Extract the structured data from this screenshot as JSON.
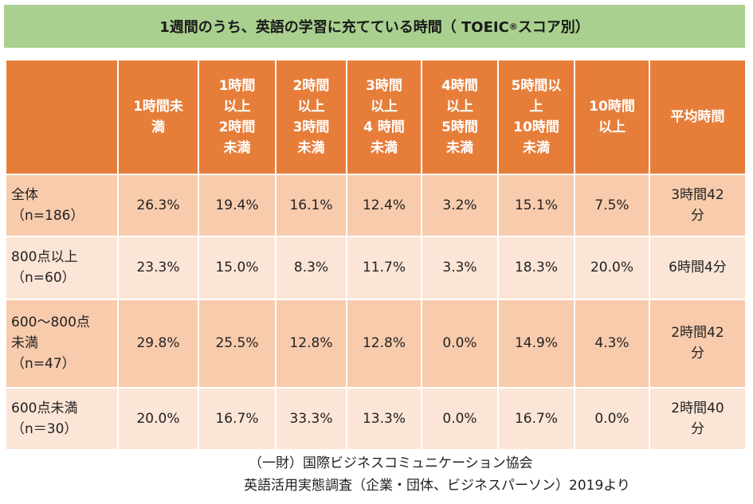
{
  "title": {
    "main": "1週間のうち、英語の学習に充てている時間（ TOEIC",
    "reg": "®",
    "end": "スコア別）"
  },
  "chart_data": {
    "type": "table",
    "columns": [
      "",
      "1時間未\n満",
      "1時間\n以上\n2時間\n未満",
      "2時間\n以上\n3時間\n未満",
      "3時間\n以上\n4 時間\n未満",
      "4時間\n以上\n5時間\n未満",
      "5時間以\n上\n10時間\n未満",
      "10時間\n以上",
      "平均時間"
    ],
    "rows": [
      {
        "label": "全体\n（n=186）",
        "values": [
          "26.3%",
          "19.4%",
          "16.1%",
          "12.4%",
          "3.2%",
          "15.1%",
          "7.5%",
          "3時間42\n分"
        ]
      },
      {
        "label": "800点以上\n（n=60）",
        "values": [
          "23.3%",
          "15.0%",
          "8.3%",
          "11.7%",
          "3.3%",
          "18.3%",
          "20.0%",
          "6時間4分"
        ]
      },
      {
        "label": "600〜800点\n未満\n（n=47）",
        "values": [
          "29.8%",
          "25.5%",
          "12.8%",
          "12.8%",
          "0.0%",
          "14.9%",
          "4.3%",
          "2時間42\n分"
        ]
      },
      {
        "label": "600点未満\n（n＝30）",
        "values": [
          "20.0%",
          "16.7%",
          "33.3%",
          "13.3%",
          "0.0%",
          "16.7%",
          "0.0%",
          "2時間40\n分"
        ]
      }
    ]
  },
  "source": {
    "line1": "（一財）国際ビジネスコミュニケーション協会",
    "line2": "英語活用実態調査（企業・団体、ビジネスパーソン）2019より"
  },
  "colors": {
    "title_bg": "#a9d08e",
    "header_bg": "#e67e3a",
    "row_dark": "#f8cbad",
    "row_light": "#fbe5d6"
  }
}
